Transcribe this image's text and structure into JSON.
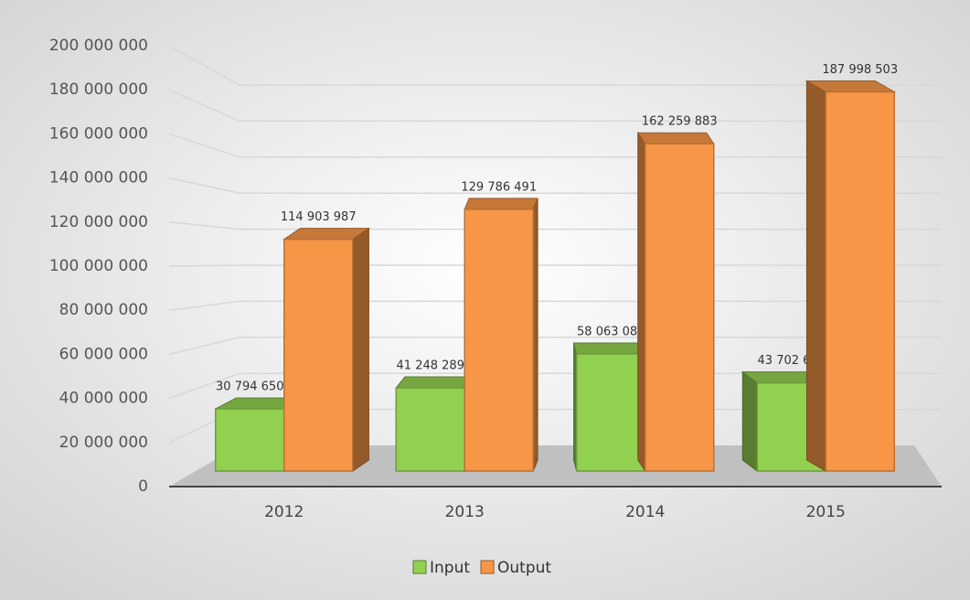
{
  "chart_data": {
    "type": "bar3d",
    "categories": [
      "2012",
      "2013",
      "2014",
      "2015"
    ],
    "series": [
      {
        "name": "Input",
        "color": "#92d050",
        "values": [
          30794650,
          41248289,
          58063081,
          43702697
        ],
        "value_labels": [
          "30 794 650",
          "41 248 289",
          "58 063 081",
          "43 702 697"
        ]
      },
      {
        "name": "Output",
        "color": "#f79646",
        "values": [
          114903987,
          129786491,
          162259883,
          187998503
        ],
        "value_labels": [
          "114 903 987",
          "129 786 491",
          "162 259 883",
          "187 998 503"
        ]
      }
    ],
    "ylim": [
      0,
      200000000
    ],
    "yticks": [
      0,
      {
        "value": 20000000,
        "label": "20 000 000"
      },
      {
        "value": 40000000,
        "label": "40 000 000"
      },
      {
        "value": 60000000,
        "label": "60 000 000"
      },
      {
        "value": 80000000,
        "label": "80 000 000"
      },
      {
        "value": 100000000,
        "label": "100 000 000"
      },
      {
        "value": 120000000,
        "label": "120 000 000"
      },
      {
        "value": 140000000,
        "label": "140 000 000"
      },
      {
        "value": 160000000,
        "label": "160 000 000"
      },
      {
        "value": 180000000,
        "label": "180 000 000"
      },
      {
        "value": 200000000,
        "label": "200 000 000"
      }
    ],
    "grid": true,
    "legend": "bottom"
  }
}
